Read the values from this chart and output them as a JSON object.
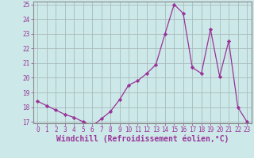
{
  "x": [
    0,
    1,
    2,
    3,
    4,
    5,
    6,
    7,
    8,
    9,
    10,
    11,
    12,
    13,
    14,
    15,
    16,
    17,
    18,
    19,
    20,
    21,
    22,
    23
  ],
  "y": [
    18.4,
    18.1,
    17.8,
    17.5,
    17.3,
    17.0,
    16.7,
    17.2,
    17.7,
    18.5,
    19.5,
    19.8,
    20.3,
    20.9,
    23.0,
    25.0,
    24.4,
    20.7,
    20.3,
    23.3,
    20.1,
    22.5,
    18.0,
    17.0
  ],
  "line_color": "#993399",
  "marker": "D",
  "marker_size": 2.2,
  "bg_color": "#cce8e8",
  "grid_color": "#aabbbb",
  "xlabel": "Windchill (Refroidissement éolien,°C)",
  "ylim": [
    17,
    25
  ],
  "xlim": [
    -0.5,
    23.5
  ],
  "xticks": [
    0,
    1,
    2,
    3,
    4,
    5,
    6,
    7,
    8,
    9,
    10,
    11,
    12,
    13,
    14,
    15,
    16,
    17,
    18,
    19,
    20,
    21,
    22,
    23
  ],
  "yticks": [
    17,
    18,
    19,
    20,
    21,
    22,
    23,
    24,
    25
  ],
  "tick_fontsize": 5.5,
  "xlabel_fontsize": 7.0
}
